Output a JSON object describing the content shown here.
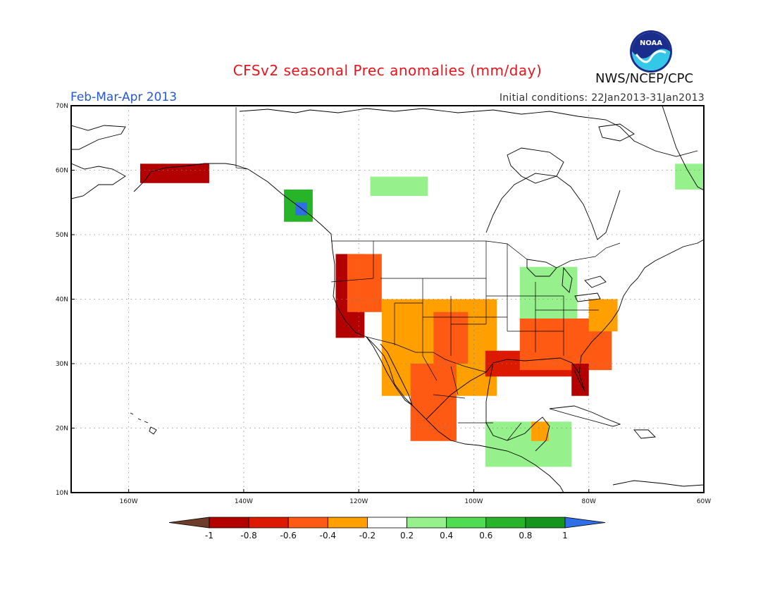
{
  "header": {
    "title": "CFSv2 seasonal Prec anomalies (mm/day)",
    "period": "Feb-Mar-Apr 2013",
    "initial_conditions": "Initial conditions: 22Jan2013-31Jan2013",
    "agency": "NWS/NCEP/CPC",
    "logo_text": "NOAA"
  },
  "map": {
    "lon_range": [
      -170,
      -60
    ],
    "lat_range": [
      10,
      70
    ],
    "lat_labels": [
      "70N",
      "60N",
      "50N",
      "40N",
      "30N",
      "20N",
      "10N"
    ],
    "lon_labels": [
      "160W",
      "140W",
      "120W",
      "100W",
      "80W",
      "60W"
    ],
    "gridlines": "dotted"
  },
  "colorbar": {
    "ticks": [
      "-1",
      "-0.8",
      "-0.6",
      "-0.4",
      "-0.2",
      "0.2",
      "0.4",
      "0.6",
      "0.8",
      "1"
    ],
    "colors": [
      "#6e3d2a",
      "#b30000",
      "#dc1a00",
      "#ff5a14",
      "#ffa000",
      "#ffffff",
      "#96f08c",
      "#50dc50",
      "#28b428",
      "#14961e",
      "#2e6ee6"
    ]
  },
  "anomaly_regions": [
    {
      "region": "US Pacific coast (N. California)",
      "lon": [
        -124,
        -122
      ],
      "lat": [
        37,
        43
      ],
      "color": "#6e3d2a"
    },
    {
      "region": "Oregon / N. California coast",
      "lon": [
        -124,
        -119
      ],
      "lat": [
        34,
        47
      ],
      "color": "#b30000"
    },
    {
      "region": "Great Basin",
      "lon": [
        -122,
        -116
      ],
      "lat": [
        38,
        47
      ],
      "color": "#ff5a14"
    },
    {
      "region": "Southwest US / N. Mexico",
      "lon": [
        -116,
        -96
      ],
      "lat": [
        25,
        40
      ],
      "color": "#ffa000"
    },
    {
      "region": "Southern Plains",
      "lon": [
        -107,
        -101
      ],
      "lat": [
        30,
        38
      ],
      "color": "#ff5a14"
    },
    {
      "region": "Mexico west coast",
      "lon": [
        -111,
        -103
      ],
      "lat": [
        18,
        30
      ],
      "color": "#ff5a14"
    },
    {
      "region": "Gulf Coast",
      "lon": [
        -98,
        -82
      ],
      "lat": [
        28,
        32
      ],
      "color": "#dc1a00"
    },
    {
      "region": "Southeast US",
      "lon": [
        -92,
        -76
      ],
      "lat": [
        29,
        37
      ],
      "color": "#ff5a14"
    },
    {
      "region": "Florida",
      "lon": [
        -83,
        -80
      ],
      "lat": [
        25,
        30
      ],
      "color": "#b30000"
    },
    {
      "region": "Mid-Atlantic",
      "lon": [
        -80,
        -75
      ],
      "lat": [
        35,
        40
      ],
      "color": "#ffa000"
    },
    {
      "region": "Alaska south coast",
      "lon": [
        -158,
        -146
      ],
      "lat": [
        58,
        61
      ],
      "color": "#b30000"
    },
    {
      "region": "British Columbia coast",
      "lon": [
        -133,
        -128
      ],
      "lat": [
        52,
        57
      ],
      "color": "#28b428"
    },
    {
      "region": "Haida Gwaii",
      "lon": [
        -131,
        -129
      ],
      "lat": [
        53,
        55
      ],
      "color": "#2e6ee6"
    },
    {
      "region": "Canadian prairies",
      "lon": [
        -118,
        -108
      ],
      "lat": [
        56,
        59
      ],
      "color": "#96f08c"
    },
    {
      "region": "Ohio Valley / Great Lakes",
      "lon": [
        -92,
        -82
      ],
      "lat": [
        37,
        45
      ],
      "color": "#96f08c"
    },
    {
      "region": "Central America",
      "lon": [
        -98,
        -83
      ],
      "lat": [
        14,
        21
      ],
      "color": "#96f08c"
    },
    {
      "region": "Yucatan",
      "lon": [
        -90,
        -87
      ],
      "lat": [
        18,
        21
      ],
      "color": "#ffa000"
    },
    {
      "region": "Quebec / Labrador",
      "lon": [
        -65,
        -60
      ],
      "lat": [
        57,
        61
      ],
      "color": "#96f08c"
    }
  ]
}
